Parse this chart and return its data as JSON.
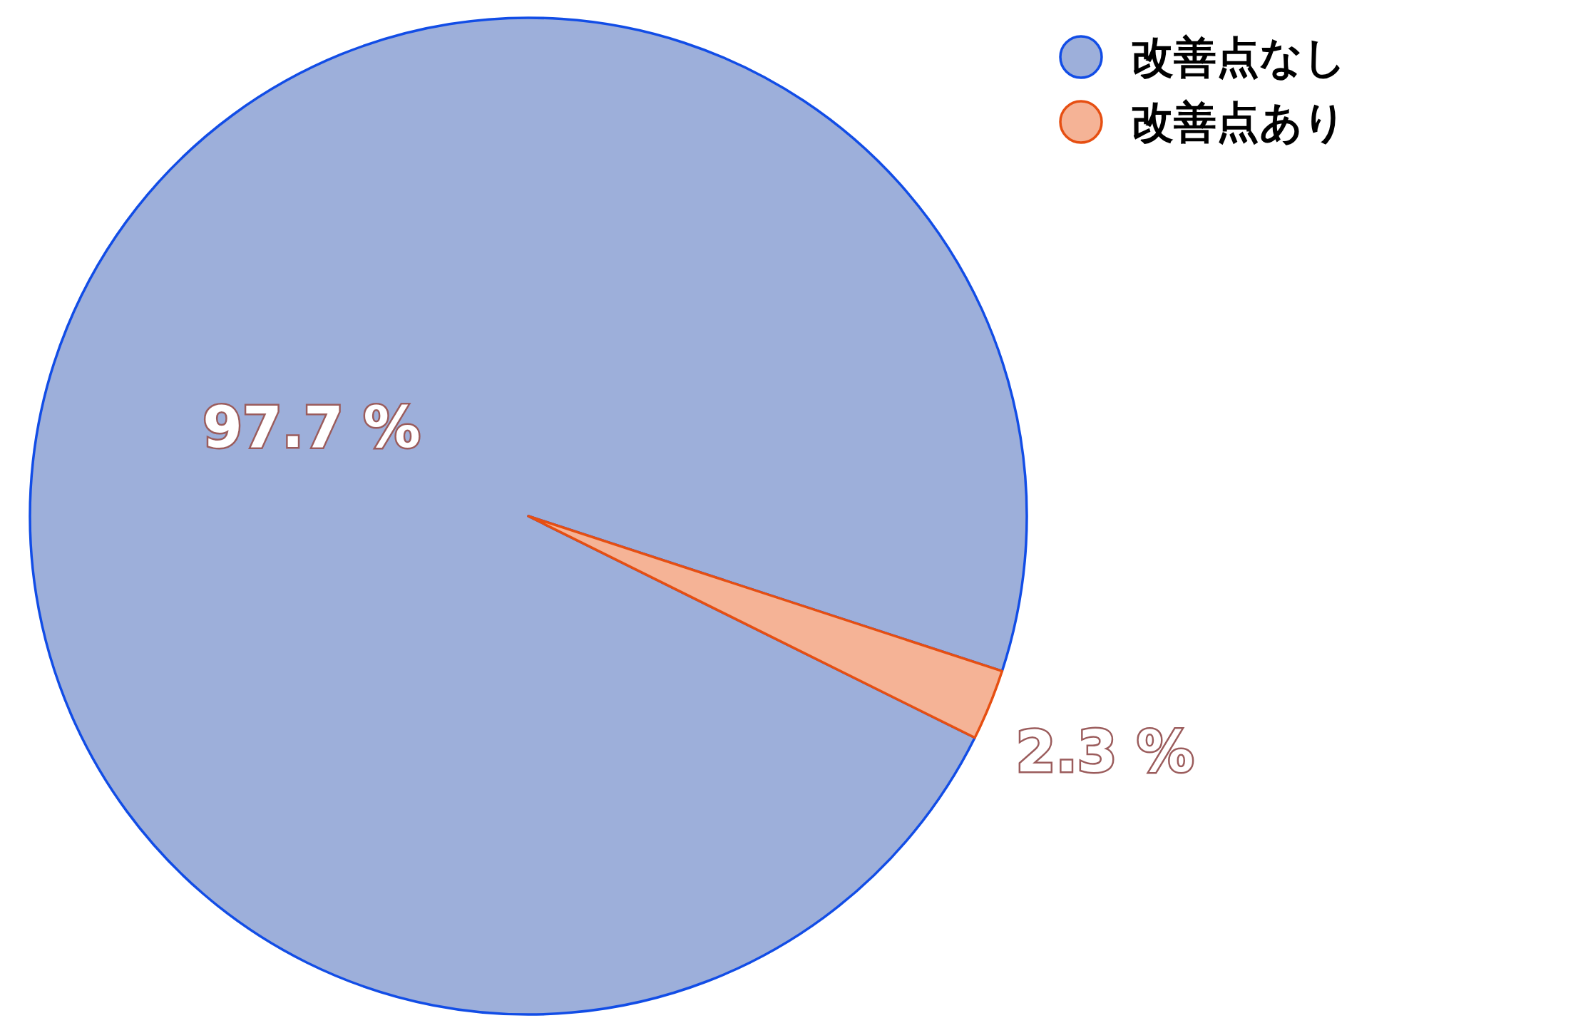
{
  "chart_data": {
    "type": "pie",
    "categories": [
      "改善点なし",
      "改善点あり"
    ],
    "values": [
      97.7,
      2.3
    ],
    "colors": [
      "#9dafda",
      "#f5b396"
    ],
    "value_labels": [
      "97.7 %",
      "2.3 %"
    ],
    "legend": "top right"
  }
}
